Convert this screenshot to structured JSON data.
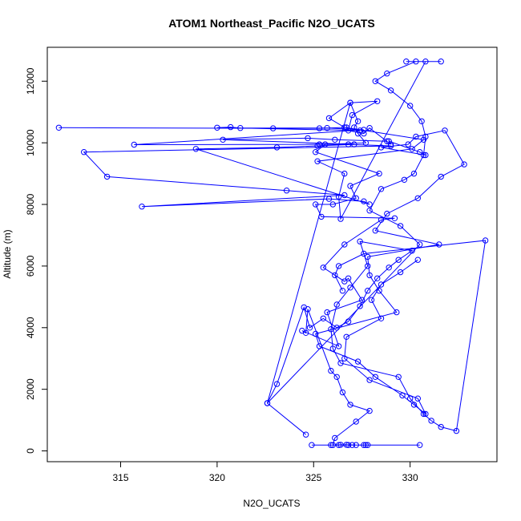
{
  "chart_data": {
    "type": "line",
    "title": "ATOM1 Northeast_Pacific N2O_UCATS",
    "xlabel": "N2O_UCATS",
    "ylabel": "Altitude (m)",
    "xlim": [
      311.2,
      334.5
    ],
    "ylim": [
      -350,
      13100
    ],
    "x_ticks": [
      315,
      320,
      325,
      330
    ],
    "y_ticks": [
      0,
      2000,
      4000,
      6000,
      8000,
      10000,
      12000
    ],
    "x_tick_labels": [
      "315",
      "320",
      "325",
      "330"
    ],
    "y_tick_labels": [
      "0",
      "2000",
      "4000",
      "6000",
      "8000",
      "10000",
      "12000"
    ],
    "grid": false,
    "legend": "none",
    "colors": {
      "series": "#0000ff",
      "frame": "#000000"
    },
    "series": [
      {
        "x": [
          324.9,
          325.9,
          326.3,
          326.7,
          327.2,
          327.6,
          327.8,
          330.5,
          327.7,
          327.0,
          326.8,
          326.4,
          326.0,
          326.1,
          327.2,
          327.9,
          326.9,
          326.5,
          326.2,
          325.9,
          324.7,
          324.6,
          324.4,
          326.3,
          325.7,
          327.5,
          326.8,
          326.6,
          325.5,
          326.6,
          328.5,
          329.2,
          325.4,
          325.1,
          326.0,
          327.2,
          326.9,
          328.4,
          325.1,
          325.6,
          327.7,
          327.3,
          327.1,
          327.3,
          326.9,
          322.6,
          330.5,
          329.5,
          327.9,
          328.5,
          329.7,
          330.2,
          330.7,
          330.8,
          330.6,
          330.0,
          329.0,
          328.2,
          328.8,
          330.3,
          329.8,
          331.6,
          330.8,
          326.4,
          326.3,
          326.6,
          325.2,
          330.1,
          330.7,
          326.6,
          325.8,
          326.9,
          328.3,
          327.0,
          326.8,
          327.6,
          327.9,
          329.0,
          328.9,
          330.5,
          330.8,
          328.5,
          329.9,
          330.3,
          331.8,
          332.8,
          331.6,
          330.4,
          328.8,
          328.2,
          331.5,
          327.8,
          327.9,
          328.4,
          329.3,
          325.1,
          325.3,
          327.3,
          328.2,
          329.6,
          330.2,
          330.8,
          330.4,
          327.9,
          326.6,
          326.7,
          328.5,
          328.0,
          328.5,
          329.5,
          330.4
        ],
        "y": [
          190,
          190,
          190,
          200,
          190,
          190,
          190,
          190,
          190,
          190,
          190,
          200,
          190,
          420,
          950,
          1300,
          1500,
          1900,
          2400,
          2600,
          4600,
          3830,
          3900,
          3400,
          4500,
          4900,
          5600,
          5500,
          5950,
          6700,
          7500,
          7550,
          7600,
          8000,
          8000,
          8200,
          8600,
          9000,
          9700,
          9950,
          10000,
          10300,
          10500,
          10700,
          11300,
          1550,
          6700,
          7300,
          7800,
          8500,
          8800,
          9000,
          9600,
          10200,
          10700,
          11200,
          11700,
          12000,
          12250,
          12640,
          12640,
          12640,
          12640,
          7530,
          8250,
          9000,
          9400,
          9800,
          10100,
          10500,
          10800,
          11300,
          11350,
          10900,
          10400,
          10300,
          10480,
          9950,
          10050,
          9700,
          9600,
          9850,
          9950,
          10200,
          10400,
          9300,
          8900,
          8200,
          7700,
          7150,
          6700,
          6300,
          5700,
          5200,
          4500,
          3800,
          3400,
          2900,
          2400,
          1800,
          1500,
          1200,
          1700,
          2300,
          3000,
          3700,
          4300,
          4900,
          5400,
          5800,
          6200
        ]
      },
      {
        "x": [
          311.8,
          322.9,
          325.3,
          326.7,
          327.4,
          320.0,
          320.7,
          321.2,
          325.7,
          327.6,
          315.7,
          325.3,
          326.8,
          329.0,
          313.1,
          314.3,
          323.6,
          326.6,
          316.1,
          325.8,
          327.6,
          327.9,
          318.9,
          323.1,
          325.2,
          327.1,
          320.3,
          324.7,
          326.1,
          328.8
        ],
        "y": [
          10490,
          10470,
          10470,
          10500,
          10400,
          10490,
          10510,
          10480,
          10480,
          10420,
          9940,
          9950,
          9950,
          9900,
          9700,
          8900,
          8450,
          8300,
          7930,
          8180,
          8100,
          8000,
          9800,
          9850,
          9900,
          9950,
          10100,
          10150,
          10100,
          10050
        ]
      },
      {
        "x": [
          324.6,
          322.6,
          323.1,
          324.5,
          324.8,
          325.5,
          326.2,
          326.8,
          327.4,
          327.8,
          328.3,
          328.9,
          329.4,
          330.1,
          327.4,
          327.8,
          326.9,
          326.2,
          325.9,
          326.0,
          326.4,
          329.4,
          330.0,
          330.7,
          331.1,
          331.6,
          332.4,
          333.9,
          327.6,
          326.3,
          326.1,
          326.5
        ],
        "y": [
          530,
          1550,
          2170,
          4660,
          4000,
          4300,
          4000,
          4200,
          4700,
          5200,
          5600,
          5950,
          6200,
          6500,
          6800,
          6000,
          5300,
          4750,
          3950,
          3320,
          2850,
          2400,
          1700,
          1200,
          980,
          780,
          650,
          6830,
          6400,
          6000,
          5700,
          5200
        ]
      }
    ]
  }
}
